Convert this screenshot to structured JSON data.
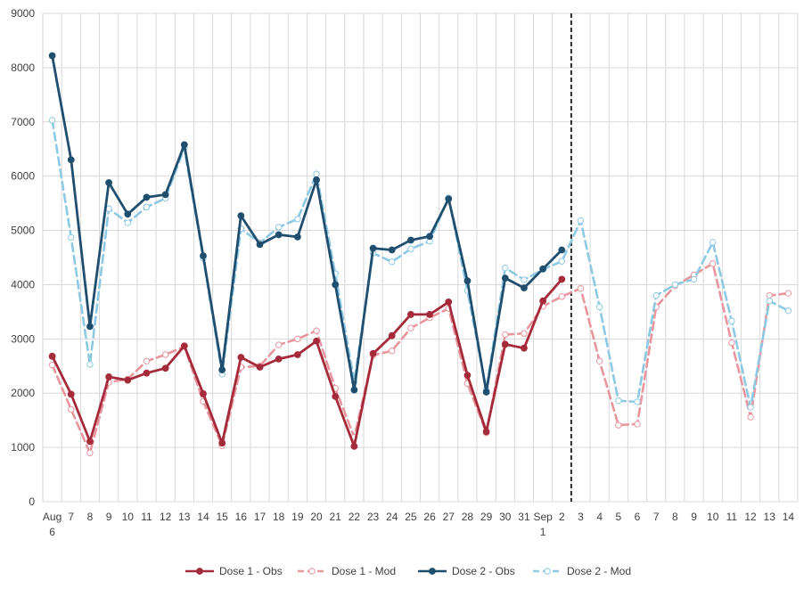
{
  "chart_data": {
    "type": "line",
    "title": "",
    "xlabel": "",
    "ylabel": "",
    "ylim": [
      0,
      9000
    ],
    "yticks": [
      0,
      1000,
      2000,
      3000,
      4000,
      5000,
      6000,
      7000,
      8000,
      9000
    ],
    "grid": true,
    "legend_position": "bottom",
    "categories": [
      "6",
      "7",
      "8",
      "9",
      "10",
      "11",
      "12",
      "13",
      "14",
      "15",
      "16",
      "17",
      "18",
      "19",
      "20",
      "21",
      "22",
      "23",
      "24",
      "25",
      "26",
      "27",
      "28",
      "29",
      "30",
      "31",
      "1",
      "2",
      "3",
      "4",
      "5",
      "6",
      "7",
      "8",
      "9",
      "10",
      "11",
      "12",
      "13",
      "14"
    ],
    "tick_labels": [
      "Aug",
      "7",
      "8",
      "9",
      "10",
      "11",
      "12",
      "13",
      "14",
      "15",
      "16",
      "17",
      "18",
      "19",
      "20",
      "21",
      "22",
      "23",
      "24",
      "25",
      "26",
      "27",
      "28",
      "29",
      "30",
      "31",
      "Sep",
      "2",
      "3",
      "4",
      "5",
      "6",
      "7",
      "8",
      "9",
      "10",
      "11",
      "12",
      "13",
      "14"
    ],
    "month_sublabels": [
      {
        "index": 0,
        "text": "6"
      },
      {
        "index": 26,
        "text": "1"
      }
    ],
    "forecast_divider_after_category": "2",
    "series": [
      {
        "name": "Dose 1 - Obs",
        "color": "#A52A3A",
        "style": "solid",
        "marker": "filled",
        "values": [
          2680,
          1980,
          1110,
          2300,
          2240,
          2370,
          2460,
          2870,
          1990,
          1080,
          2660,
          2480,
          2630,
          2710,
          2960,
          1940,
          1020,
          2730,
          3060,
          3450,
          3450,
          3680,
          2330,
          1290,
          2900,
          2830,
          3700,
          4100,
          null,
          null,
          null,
          null,
          null,
          null,
          null,
          null,
          null,
          null,
          null,
          null
        ]
      },
      {
        "name": "Dose 1 - Mod",
        "color": "#E8959D",
        "style": "dashed",
        "marker": "open",
        "values": [
          2520,
          1700,
          900,
          2200,
          2260,
          2590,
          2710,
          2860,
          1850,
          1030,
          2480,
          2500,
          2890,
          3000,
          3150,
          2090,
          1190,
          2700,
          2780,
          3200,
          3390,
          3560,
          2180,
          1270,
          3080,
          3100,
          3600,
          3780,
          3930,
          2590,
          1410,
          1430,
          3590,
          3980,
          4180,
          4390,
          2930,
          1560,
          3800,
          3840
        ]
      },
      {
        "name": "Dose 2 - Obs",
        "color": "#1F4E6E",
        "style": "solid",
        "marker": "filled",
        "values": [
          8220,
          6300,
          3230,
          5880,
          5300,
          5610,
          5660,
          6580,
          4530,
          2430,
          5270,
          4740,
          4920,
          4880,
          5930,
          4000,
          2060,
          4670,
          4640,
          4820,
          4890,
          5580,
          4070,
          2020,
          4120,
          3940,
          4290,
          4640,
          null,
          null,
          null,
          null,
          null,
          null,
          null,
          null,
          null,
          null,
          null,
          null
        ]
      },
      {
        "name": "Dose 2 - Mod",
        "color": "#8EC9E3",
        "style": "dashed",
        "marker": "open",
        "values": [
          7030,
          4870,
          2530,
          5400,
          5140,
          5430,
          5590,
          6520,
          4490,
          2350,
          5030,
          4770,
          5060,
          5210,
          6040,
          4200,
          2210,
          4580,
          4420,
          4660,
          4800,
          5600,
          3890,
          2070,
          4310,
          4090,
          4280,
          4430,
          5180,
          3590,
          1860,
          1840,
          3800,
          4000,
          4100,
          4780,
          3330,
          1740,
          3700,
          3520
        ]
      }
    ]
  }
}
